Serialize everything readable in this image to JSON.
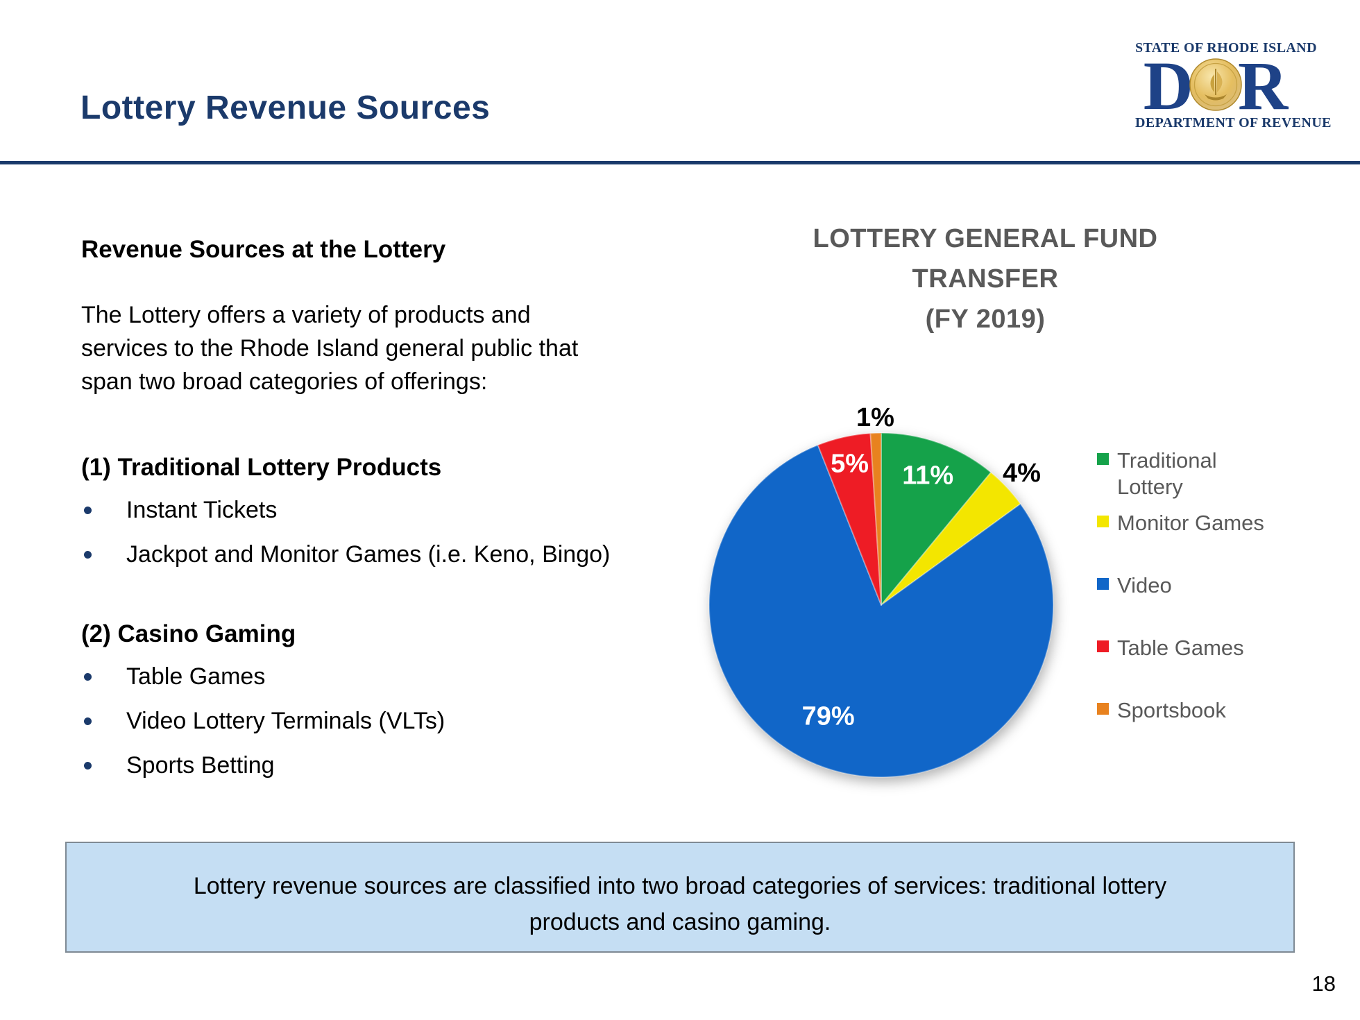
{
  "slide": {
    "title": "Lottery Revenue Sources",
    "page_number": "18"
  },
  "logo": {
    "top_text": "STATE OF RHODE ISLAND",
    "letters": [
      "D",
      "R"
    ],
    "bottom_text": "DEPARTMENT OF REVENUE"
  },
  "left_column": {
    "heading": "Revenue Sources at the Lottery",
    "paragraph": "The Lottery offers a variety of products and services to the Rhode Island general public that span two broad categories of offerings:",
    "sections": [
      {
        "heading": "(1) Traditional Lottery Products",
        "bullets": [
          "Instant Tickets",
          "Jackpot and Monitor Games (i.e. Keno, Bingo)"
        ]
      },
      {
        "heading": "(2) Casino Gaming",
        "bullets": [
          "Table Games",
          "Video Lottery Terminals (VLTs)",
          "Sports Betting"
        ]
      }
    ]
  },
  "chart_data": {
    "type": "pie",
    "title": "LOTTERY GENERAL FUND TRANSFER (FY 2019)",
    "title_lines": [
      "LOTTERY GENERAL FUND",
      "TRANSFER",
      "(FY 2019)"
    ],
    "start_angle_deg": 0,
    "direction": "clockwise",
    "legend_position": "right",
    "slices": [
      {
        "label": "Traditional Lottery",
        "value_pct": 11,
        "color": "#15A24A",
        "data_label": "11%",
        "label_color": "#FFFFFF",
        "label_inside": true
      },
      {
        "label": "Monitor Games",
        "value_pct": 4,
        "color": "#F3E600",
        "data_label": "4%",
        "label_color": "#000000",
        "label_inside": false
      },
      {
        "label": "Video",
        "value_pct": 79,
        "color": "#1166C8",
        "data_label": "79%",
        "label_color": "#FFFFFF",
        "label_inside": true
      },
      {
        "label": "Table Games",
        "value_pct": 5,
        "color": "#EE1C25",
        "data_label": "5%",
        "label_color": "#FFFFFF",
        "label_inside": true
      },
      {
        "label": "Sportsbook",
        "value_pct": 1,
        "color": "#E8821F",
        "data_label": "1%",
        "label_color": "#000000",
        "label_inside": false
      }
    ]
  },
  "footer": {
    "note": "Lottery revenue sources are classified into two broad categories of services: traditional lottery products and casino gaming."
  },
  "colors": {
    "accent_navy": "#1B3A6B",
    "chart_title_gray": "#595959",
    "footer_fill": "#C5DEF3",
    "footer_border": "#7F8A94",
    "logo_gold": "#DDB452"
  }
}
